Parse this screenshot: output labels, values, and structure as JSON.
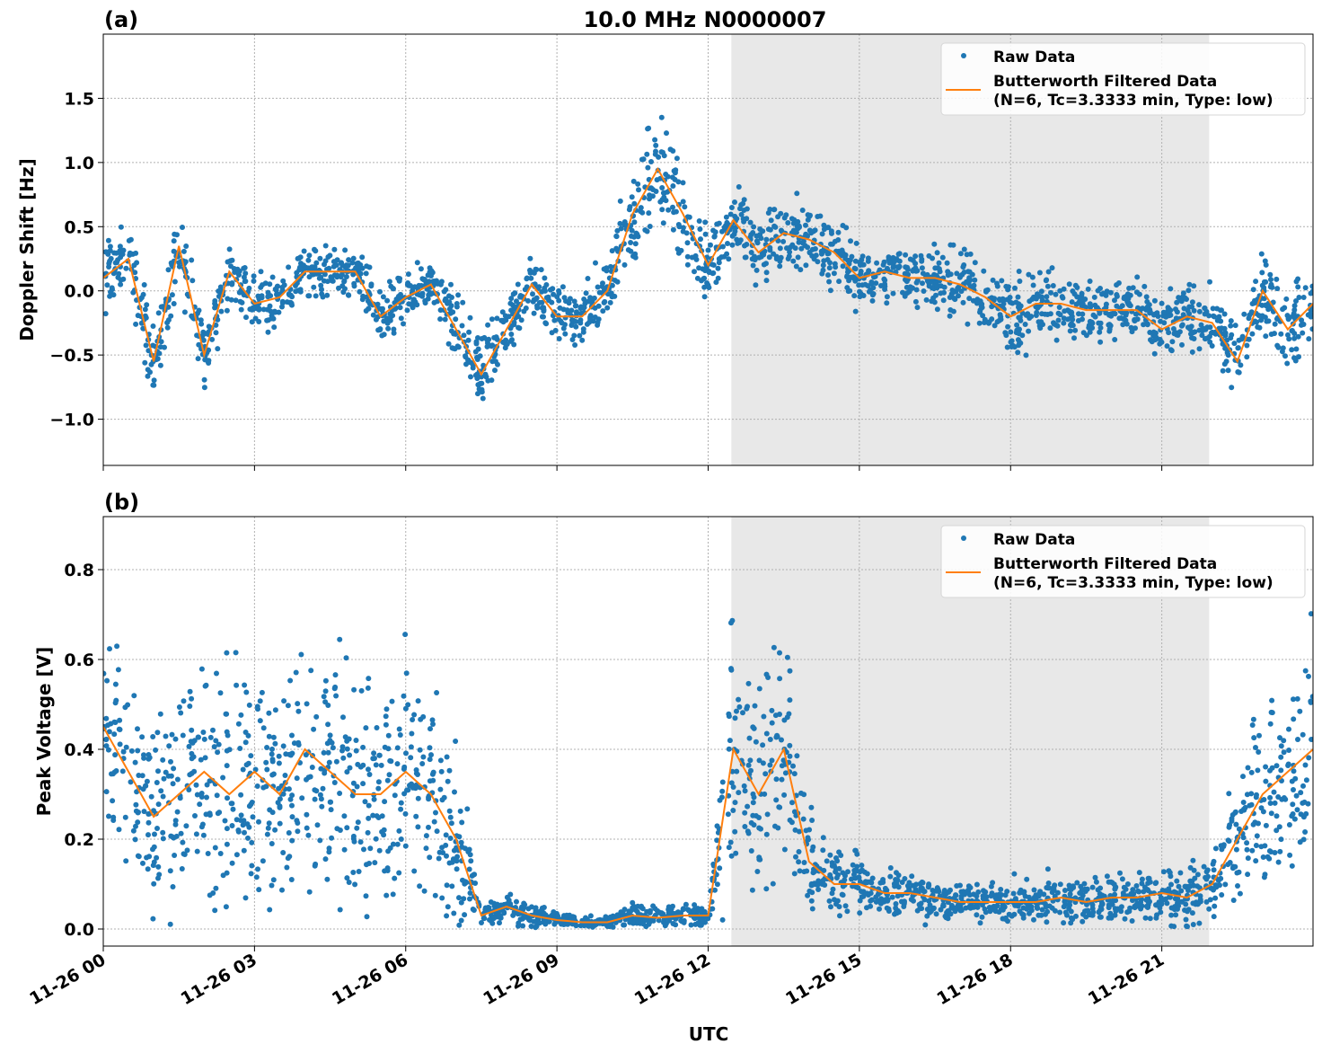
{
  "title": "10.0 MHz N0000007",
  "xlabel": "UTC",
  "x_ticks": [
    "11-26 00",
    "11-26 03",
    "11-26 06",
    "11-26 09",
    "11-26 12",
    "11-26 15",
    "11-26 18",
    "11-26 21"
  ],
  "x_tick_hours": [
    0,
    3,
    6,
    9,
    12,
    15,
    18,
    21
  ],
  "colors": {
    "raw": "#1f77b4",
    "filtered": "#ff7f0e",
    "shade": "#e8e8e8"
  },
  "shaded_interval_hours": [
    12.46,
    21.94
  ],
  "legend": {
    "raw": "Raw Data",
    "filtered_line1": "Butterworth Filtered Data",
    "filtered_line2": "(N=6, Tc=3.3333 min, Type: low)",
    "placement": "upper right"
  },
  "chart_data": [
    {
      "type": "scatter+line",
      "panel_label": "(a)",
      "ylabel": "Doppler Shift [Hz]",
      "xlim_hours": [
        0,
        24
      ],
      "ylim": [
        -1.36,
        2.0
      ],
      "y_ticks": [
        -1.0,
        -0.5,
        0.0,
        0.5,
        1.0,
        1.5
      ],
      "y_tick_labels": [
        "−1.0",
        "−0.5",
        "0.0",
        "0.5",
        "1.0",
        "1.5"
      ],
      "grid": true,
      "x_hours_step": 0.5,
      "filtered": [
        0.1,
        0.25,
        -0.55,
        0.35,
        -0.5,
        0.15,
        -0.1,
        -0.05,
        0.15,
        0.15,
        0.15,
        -0.2,
        -0.05,
        0.05,
        -0.3,
        -0.65,
        -0.3,
        0.05,
        -0.2,
        -0.2,
        0.0,
        0.6,
        0.95,
        0.6,
        0.2,
        0.55,
        0.3,
        0.45,
        0.4,
        0.3,
        0.1,
        0.15,
        0.1,
        0.1,
        0.05,
        -0.05,
        -0.2,
        -0.1,
        -0.1,
        -0.15,
        -0.15,
        -0.15,
        -0.3,
        -0.2,
        -0.25,
        -0.55,
        0.0,
        -0.3,
        -0.1
      ],
      "raw_spread": [
        0.3,
        0.3,
        0.35,
        0.3,
        0.3,
        0.25,
        0.25,
        0.2,
        0.2,
        0.2,
        0.2,
        0.25,
        0.2,
        0.2,
        0.3,
        0.35,
        0.3,
        0.25,
        0.25,
        0.25,
        0.3,
        0.4,
        0.5,
        0.45,
        0.35,
        0.35,
        0.3,
        0.35,
        0.35,
        0.3,
        0.25,
        0.25,
        0.25,
        0.25,
        0.3,
        0.3,
        0.35,
        0.3,
        0.3,
        0.25,
        0.25,
        0.25,
        0.25,
        0.25,
        0.3,
        0.35,
        0.3,
        0.35,
        0.3
      ]
    },
    {
      "type": "scatter+line",
      "panel_label": "(b)",
      "ylabel": "Peak Voltage [V]",
      "xlim_hours": [
        0,
        24
      ],
      "ylim": [
        -0.038,
        0.918
      ],
      "y_ticks": [
        0.0,
        0.2,
        0.4,
        0.6,
        0.8
      ],
      "y_tick_labels": [
        "0.0",
        "0.2",
        "0.4",
        "0.6",
        "0.8"
      ],
      "grid": true,
      "x_hours_step": 0.5,
      "filtered": [
        0.45,
        0.35,
        0.25,
        0.3,
        0.35,
        0.3,
        0.35,
        0.3,
        0.4,
        0.35,
        0.3,
        0.3,
        0.35,
        0.3,
        0.2,
        0.03,
        0.05,
        0.03,
        0.02,
        0.015,
        0.015,
        0.03,
        0.025,
        0.03,
        0.03,
        0.4,
        0.3,
        0.4,
        0.15,
        0.1,
        0.1,
        0.08,
        0.08,
        0.07,
        0.06,
        0.06,
        0.06,
        0.06,
        0.07,
        0.06,
        0.07,
        0.07,
        0.08,
        0.07,
        0.1,
        0.2,
        0.3,
        0.35,
        0.4
      ],
      "raw_spread": [
        0.3,
        0.28,
        0.25,
        0.28,
        0.3,
        0.3,
        0.3,
        0.28,
        0.32,
        0.3,
        0.28,
        0.28,
        0.3,
        0.28,
        0.25,
        0.02,
        0.04,
        0.03,
        0.02,
        0.015,
        0.015,
        0.03,
        0.025,
        0.03,
        0.03,
        0.3,
        0.28,
        0.3,
        0.12,
        0.08,
        0.07,
        0.06,
        0.06,
        0.06,
        0.05,
        0.05,
        0.05,
        0.05,
        0.06,
        0.05,
        0.06,
        0.06,
        0.07,
        0.07,
        0.1,
        0.18,
        0.22,
        0.25,
        0.28
      ]
    }
  ]
}
